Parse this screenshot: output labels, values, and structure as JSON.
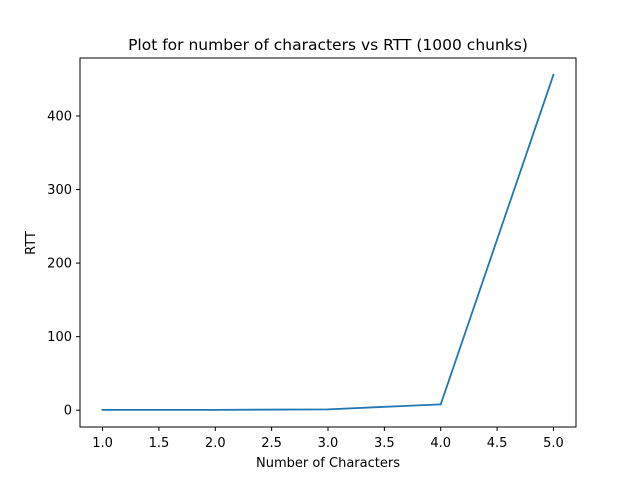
{
  "chart_data": {
    "type": "line",
    "title": "Plot for number of characters vs RTT (1000 chunks)",
    "xlabel": "Number of Characters",
    "ylabel": "RTT",
    "x": [
      1.0,
      2.0,
      3.0,
      4.0,
      5.0
    ],
    "series": [
      {
        "values": [
          0.5,
          0.5,
          1.2,
          8.0,
          456.0
        ],
        "color": "#1f77b4"
      }
    ],
    "xlim": [
      0.8,
      5.2
    ],
    "ylim": [
      -22.8,
      478.8
    ],
    "xticks": [
      1.0,
      1.5,
      2.0,
      2.5,
      3.0,
      3.5,
      4.0,
      4.5,
      5.0
    ],
    "xtick_labels": [
      "1.0",
      "1.5",
      "2.0",
      "2.5",
      "3.0",
      "3.5",
      "4.0",
      "4.5",
      "5.0"
    ],
    "yticks": [
      0,
      100,
      200,
      300,
      400
    ],
    "ytick_labels": [
      "0",
      "100",
      "200",
      "300",
      "400"
    ],
    "grid": false,
    "legend": "none"
  }
}
